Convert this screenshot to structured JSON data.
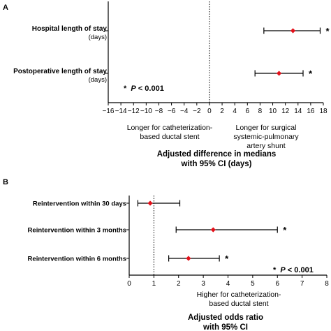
{
  "chart_data": [
    {
      "type": "forest",
      "panel_label": "A",
      "xlim": [
        -16,
        18
      ],
      "x_ticks": [
        -16,
        -14,
        -12,
        -10,
        -8,
        -6,
        -4,
        -2,
        0,
        2,
        4,
        6,
        8,
        10,
        12,
        14,
        16,
        18
      ],
      "x_tick_labels": [
        "−16",
        "−14",
        "−12",
        "−10",
        "−8",
        "−6",
        "−4",
        "−2",
        "0",
        "2",
        "4",
        "6",
        "8",
        "10",
        "12",
        "14",
        "16",
        "18"
      ],
      "reference_line": 0,
      "xlabel": [
        "Adjusted difference in medians",
        "with 95% CI (days)"
      ],
      "left_note": [
        "Longer for catheterization-",
        "based ductal stent"
      ],
      "right_note": [
        "Longer for surgical",
        "systemic-pulmonary",
        "artery shunt"
      ],
      "significance_note": {
        "symbol": "*",
        "p_label": "P",
        "text": " < 0.001"
      },
      "rows": [
        {
          "label": "Hospital length of stay",
          "sublabel": "(days)",
          "estimate": 13.2,
          "ci_low": 8.6,
          "ci_high": 17.5,
          "significant": true
        },
        {
          "label": "Postoperative length of stay",
          "sublabel": "(days)",
          "estimate": 11.0,
          "ci_low": 7.2,
          "ci_high": 14.8,
          "significant": true
        }
      ]
    },
    {
      "type": "forest",
      "panel_label": "B",
      "xlim": [
        0,
        8
      ],
      "x_ticks": [
        0,
        1,
        2,
        3,
        4,
        5,
        6,
        7,
        8
      ],
      "x_tick_labels": [
        "0",
        "1",
        "2",
        "3",
        "4",
        "5",
        "6",
        "7",
        "8"
      ],
      "reference_line": 1,
      "xlabel": [
        "Adjusted odds ratio",
        "with 95% CI"
      ],
      "right_note": [
        "Higher for catheterization-",
        "based ductal stent"
      ],
      "significance_note": {
        "symbol": "*",
        "p_label": "P",
        "text": " < 0.001"
      },
      "rows": [
        {
          "label": "Reintervention within 30 days",
          "estimate": 0.85,
          "ci_low": 0.35,
          "ci_high": 2.05,
          "significant": false
        },
        {
          "label": "Reintervention within 3 months",
          "estimate": 3.4,
          "ci_low": 1.9,
          "ci_high": 6.0,
          "significant": true
        },
        {
          "label": "Reintervention within 6 months",
          "estimate": 2.4,
          "ci_low": 1.6,
          "ci_high": 3.65,
          "significant": true
        }
      ]
    }
  ],
  "colors": {
    "point": "#e3111a",
    "axis": "#000000",
    "ci": "#000000"
  }
}
